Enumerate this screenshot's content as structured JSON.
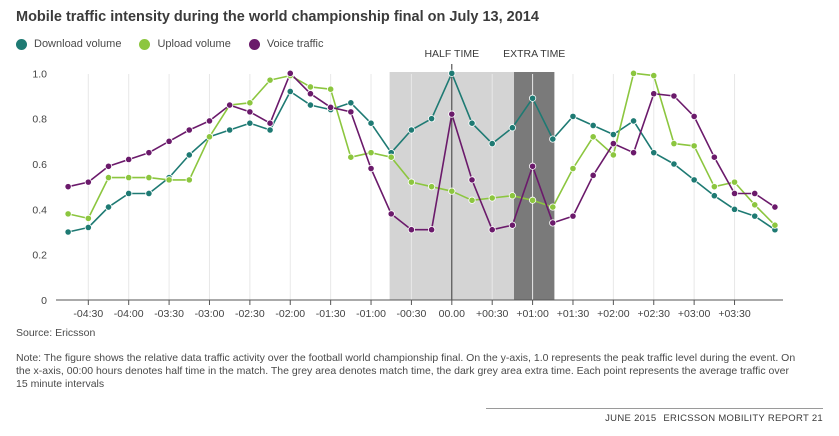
{
  "footer": {
    "date": "JUNE 2015",
    "report": "ERICSSON MOBILITY REPORT",
    "page": "21"
  },
  "source": "Source: Ericsson",
  "note": "Note: The figure shows the relative data traffic activity over the football world championship final. On the y-axis, 1.0 represents the peak traffic level during the event. On the x-axis, 00:00 hours denotes half time in the match. The grey area denotes match time, the dark grey area extra time. Each point represents the average traffic over 15 minute intervals",
  "colors": {
    "download": "#1e7a73",
    "upload": "#8cc63f",
    "voice": "#6b1a6b",
    "match": "#d4d4d4",
    "extra": "#7a7a7a",
    "axis": "#555555",
    "grid": "#e8e8e8"
  },
  "chart_data": {
    "type": "line",
    "title": "Mobile traffic intensity during the world championship final on July 13, 2014",
    "xlabel": "",
    "ylabel": "",
    "x_unit": "hours relative to half time",
    "x": [
      -4.75,
      -4.5,
      -4.25,
      -4.0,
      -3.75,
      -3.5,
      -3.25,
      -3.0,
      -2.75,
      -2.5,
      -2.25,
      -2.0,
      -1.75,
      -1.5,
      -1.25,
      -1.0,
      -0.75,
      -0.5,
      -0.25,
      0.0,
      0.25,
      0.5,
      0.75,
      1.0,
      1.25,
      1.5,
      1.75,
      2.0,
      2.25,
      2.5,
      2.75,
      3.0,
      3.25,
      3.5,
      3.75,
      4.0
    ],
    "xlim": [
      -4.9,
      4.1
    ],
    "ylim": [
      0,
      1.05
    ],
    "x_ticks": [
      {
        "v": -4.5,
        "label": "-04:30"
      },
      {
        "v": -4.0,
        "label": "-04:00"
      },
      {
        "v": -3.5,
        "label": "-03:30"
      },
      {
        "v": -3.0,
        "label": "-03:00"
      },
      {
        "v": -2.5,
        "label": "-02:30"
      },
      {
        "v": -2.0,
        "label": "-02:00"
      },
      {
        "v": -1.5,
        "label": "-01:30"
      },
      {
        "v": -1.0,
        "label": "-01:00"
      },
      {
        "v": -0.5,
        "label": "-00:30"
      },
      {
        "v": 0.0,
        "label": "00.00"
      },
      {
        "v": 0.5,
        "label": "+00:30"
      },
      {
        "v": 1.0,
        "label": "+01:00"
      },
      {
        "v": 1.5,
        "label": "+01:30"
      },
      {
        "v": 2.0,
        "label": "+02:00"
      },
      {
        "v": 2.5,
        "label": "+02:30"
      },
      {
        "v": 3.0,
        "label": "+03:00"
      },
      {
        "v": 3.5,
        "label": "+03:30"
      }
    ],
    "y_ticks": [
      {
        "v": 0,
        "label": "0"
      },
      {
        "v": 0.2,
        "label": "0.2"
      },
      {
        "v": 0.4,
        "label": "0.4"
      },
      {
        "v": 0.6,
        "label": "0.6"
      },
      {
        "v": 0.8,
        "label": "0.8"
      },
      {
        "v": 1.0,
        "label": "1.0"
      }
    ],
    "grid": true,
    "legend_position": "top-left",
    "shaded_regions": [
      {
        "name": "match",
        "from": -0.77,
        "to": 0.77
      },
      {
        "name": "extra",
        "from": 0.77,
        "to": 1.27
      }
    ],
    "annotations": [
      {
        "text": "HALF TIME",
        "x": 0.0
      },
      {
        "text": "EXTRA TIME",
        "x": 1.02
      }
    ],
    "series": [
      {
        "name": "Download volume",
        "key": "download",
        "values": [
          0.3,
          0.32,
          0.41,
          0.47,
          0.47,
          0.54,
          0.64,
          0.72,
          0.75,
          0.78,
          0.75,
          0.92,
          0.86,
          0.84,
          0.87,
          0.78,
          0.65,
          0.75,
          0.8,
          1.0,
          0.78,
          0.69,
          0.76,
          0.89,
          0.71,
          0.81,
          0.77,
          0.73,
          0.79,
          0.65,
          0.6,
          0.53,
          0.46,
          0.4,
          0.37,
          0.31
        ]
      },
      {
        "name": "Upload volume",
        "key": "upload",
        "values": [
          0.38,
          0.36,
          0.54,
          0.54,
          0.54,
          0.53,
          0.53,
          0.72,
          0.86,
          0.87,
          0.97,
          0.99,
          0.94,
          0.93,
          0.63,
          0.65,
          0.63,
          0.52,
          0.5,
          0.48,
          0.44,
          0.45,
          0.46,
          0.44,
          0.41,
          0.58,
          0.72,
          0.64,
          1.0,
          0.99,
          0.69,
          0.68,
          0.5,
          0.52,
          0.42,
          0.33
        ]
      },
      {
        "name": "Voice traffic",
        "key": "voice",
        "values": [
          0.5,
          0.52,
          0.59,
          0.62,
          0.65,
          0.7,
          0.75,
          0.79,
          0.86,
          0.83,
          0.78,
          1.0,
          0.91,
          0.85,
          0.83,
          0.58,
          0.38,
          0.31,
          0.31,
          0.82,
          0.53,
          0.31,
          0.33,
          0.59,
          0.34,
          0.37,
          0.55,
          0.69,
          0.65,
          0.91,
          0.9,
          0.81,
          0.63,
          0.47,
          0.47,
          0.41
        ]
      }
    ]
  }
}
